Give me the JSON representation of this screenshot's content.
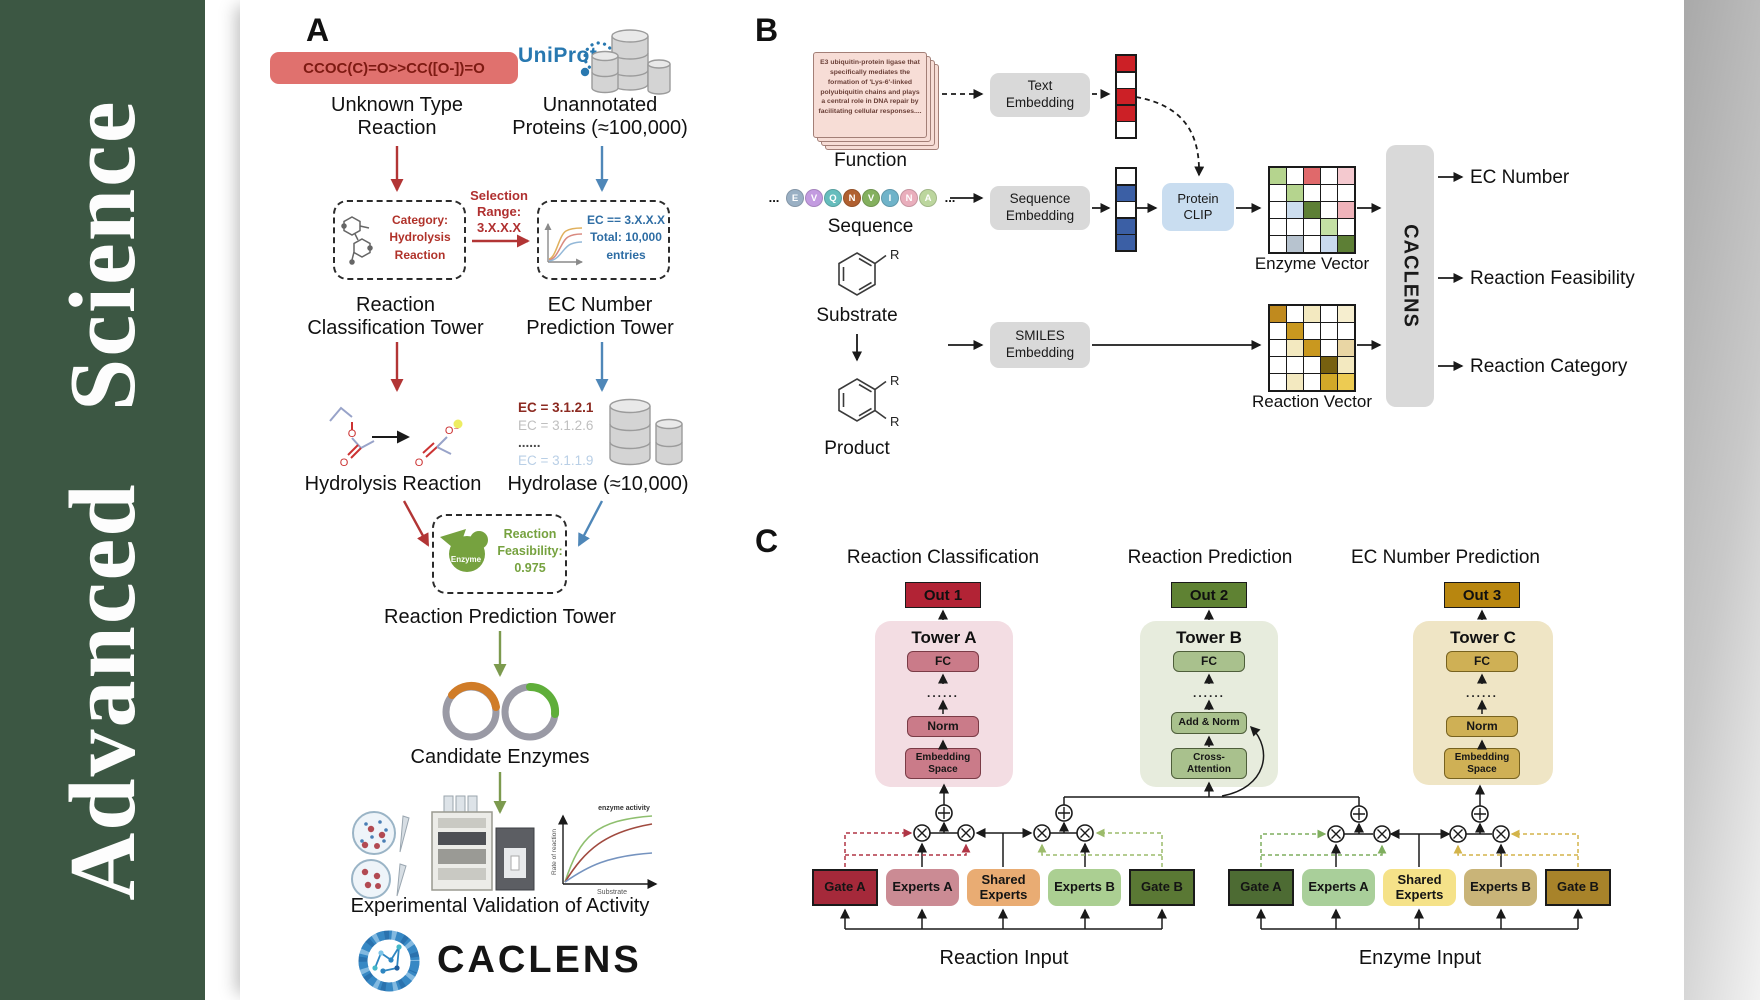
{
  "sidebar": {
    "journal": "Advanced Science",
    "color": "#3c5743"
  },
  "panelA": {
    "label": "A",
    "smiles_pill": {
      "text": "CCOC(C)=O>>CC([O-])=O",
      "bg": "#e0716e",
      "text_color": "#7d1a12"
    },
    "unknown_reaction": [
      "Unknown Type",
      "Reaction"
    ],
    "uniprot": "UniProt",
    "unannotated_proteins": [
      "Unannotated",
      "Proteins (≈100,000)"
    ],
    "selection_range": [
      "Selection",
      "Range:",
      "3.X.X.X"
    ],
    "classification_box": [
      "Category:",
      "Hydrolysis",
      "Reaction"
    ],
    "ec_box": [
      "EC == 3.X.X.X",
      "Total: 10,000",
      "entries"
    ],
    "tower_classification": [
      "Reaction",
      "Classification Tower"
    ],
    "tower_ec": [
      "EC Number",
      "Prediction Tower"
    ],
    "hydrolysis_reaction": "Hydrolysis Reaction",
    "ec_list": [
      {
        "text": "EC = 3.1.2.1",
        "color": "#8c2a21",
        "weight": "bold"
      },
      {
        "text": "EC = 3.1.2.6",
        "color": "#bfbfbf",
        "weight": "normal"
      },
      {
        "text": "......",
        "color": "#4a4a4a",
        "weight": "bold"
      },
      {
        "text": "EC = 3.1.1.9",
        "color": "#b9cfe6",
        "weight": "normal"
      }
    ],
    "hydrolase": "Hydrolase (≈10,000)",
    "enzyme_badge": "Enzyme",
    "feasibility": [
      "Reaction",
      "Feasibility:",
      "0.975"
    ],
    "tower_prediction": "Reaction Prediction Tower",
    "candidate_enzymes": "Candidate Enzymes",
    "activity_plot": {
      "ylabel": "Rate of reaction",
      "xlabel": "Substrate",
      "annotation": "enzyme activity"
    },
    "validation": "Experimental Validation of Activity",
    "logo": "CACLENS"
  },
  "panelB": {
    "label": "B",
    "function_card": "E3 ubiquitin-protein ligase that specifically mediates the formation of 'Lys-6'-linked polyubiquitin chains and plays a central role in DNA repair by facilitating cellular responses....",
    "function": "Function",
    "sequence": "Sequence",
    "ellipsis": "...",
    "residues": [
      {
        "letter": "E",
        "color": "#9ab0c4"
      },
      {
        "letter": "V",
        "color": "#c39be0"
      },
      {
        "letter": "Q",
        "color": "#66bdbd"
      },
      {
        "letter": "N",
        "color": "#b06030"
      },
      {
        "letter": "V",
        "color": "#84b05e"
      },
      {
        "letter": "I",
        "color": "#6fb3c9"
      },
      {
        "letter": "N",
        "color": "#e9aebc"
      },
      {
        "letter": "A",
        "color": "#bcd69e"
      }
    ],
    "substrate": "Substrate",
    "product": "Product",
    "r_group": "R",
    "text_embedding": [
      "Text",
      "Embedding"
    ],
    "sequence_embedding": [
      "Sequence",
      "Embedding"
    ],
    "smiles_embedding": [
      "SMILES",
      "Embedding"
    ],
    "protein_clip": [
      "Protein",
      "CLIP"
    ],
    "text_vector": [
      "#cc2026",
      "#ffffff",
      "#cc2026",
      "#cc2026",
      "#ffffff"
    ],
    "sequence_vector": [
      "#ffffff",
      "#3b5fa5",
      "#ffffff",
      "#3b5fa5",
      "#3b5fa5"
    ],
    "enzyme_vector": {
      "label": "Enzyme Vector",
      "cells": [
        "#b5d48e",
        "#ffffff",
        "#e0696b",
        "#ffffff",
        "#f4c9cf",
        "#ffffff",
        "#b5d48e",
        "#ffffff",
        "#ffffff",
        "#ffffff",
        "#ffffff",
        "#ccddee",
        "#5d7f35",
        "#ffffff",
        "#efb3ba",
        "#ffffff",
        "#ffffff",
        "#ffffff",
        "#c4e0a4",
        "#ffffff",
        "#ffffff",
        "#b7c3cf",
        "#ffffff",
        "#c9daee",
        "#5d7f35"
      ]
    },
    "reaction_vector": {
      "label": "Reaction Vector",
      "cells": [
        "#c08a1e",
        "#ffffff",
        "#f3e9c0",
        "#ffffff",
        "#f6eecf",
        "#ffffff",
        "#c9981f",
        "#ffffff",
        "#ffffff",
        "#ffffff",
        "#ffffff",
        "#f3e9c0",
        "#c9981f",
        "#ffffff",
        "#e9d6a4",
        "#ffffff",
        "#ffffff",
        "#ffffff",
        "#77600f",
        "#f3e9c0",
        "#ffffff",
        "#f3e9c0",
        "#ffffff",
        "#d2a928",
        "#edcb52"
      ]
    },
    "caclens": "CACLENS",
    "outputs": [
      "EC Number",
      "Reaction Feasibility",
      "Reaction Category"
    ]
  },
  "panelC": {
    "label": "C",
    "headings": [
      "Reaction Classification",
      "Reaction Prediction",
      "EC Number Prediction"
    ],
    "outs": [
      {
        "label": "Out 1",
        "color": "#b22335"
      },
      {
        "label": "Out 2",
        "color": "#5f8233"
      },
      {
        "label": "Out 3",
        "color": "#b8860f"
      }
    ],
    "dots": "......",
    "towers": [
      {
        "title": "Tower A",
        "panel": "#f3dde3",
        "box": "#ca7b89",
        "layers": [
          "FC",
          "Norm",
          "Embedding Space"
        ]
      },
      {
        "title": "Tower B",
        "panel": "#e7ecdd",
        "box": "#a9c18d",
        "layers": [
          "FC",
          "Add & Norm",
          "Cross-Attention"
        ]
      },
      {
        "title": "Tower C",
        "panel": "#efe5c5",
        "box": "#cfb055",
        "layers": [
          "FC",
          "Norm",
          "Embedding Space"
        ]
      }
    ],
    "reaction_moe": {
      "input": "Reaction Input",
      "boxes": [
        {
          "label": "Gate A",
          "color": "#a5293a",
          "kind": "gate",
          "name": "gate-a"
        },
        {
          "label": "Experts A",
          "color": "#cb8b94",
          "kind": "expert",
          "name": "experts-a"
        },
        {
          "label": "Shared Experts",
          "color": "#e9ac73",
          "kind": "expert",
          "name": "shared-experts"
        },
        {
          "label": "Experts B",
          "color": "#abcf92",
          "kind": "expert",
          "name": "experts-b"
        },
        {
          "label": "Gate B",
          "color": "#5a7834",
          "kind": "gate",
          "name": "gate-b"
        }
      ]
    },
    "enzyme_moe": {
      "input": "Enzyme Input",
      "boxes": [
        {
          "label": "Gate A",
          "color": "#4d6b33",
          "kind": "gate",
          "name": "gate-a"
        },
        {
          "label": "Experts A",
          "color": "#a9cf9a",
          "kind": "expert",
          "name": "experts-a"
        },
        {
          "label": "Shared Experts",
          "color": "#f5e289",
          "kind": "expert",
          "name": "shared-experts"
        },
        {
          "label": "Experts B",
          "color": "#c9b478",
          "kind": "expert",
          "name": "experts-b"
        },
        {
          "label": "Gate B",
          "color": "#a8832a",
          "kind": "gate",
          "name": "gate-b"
        }
      ]
    }
  }
}
